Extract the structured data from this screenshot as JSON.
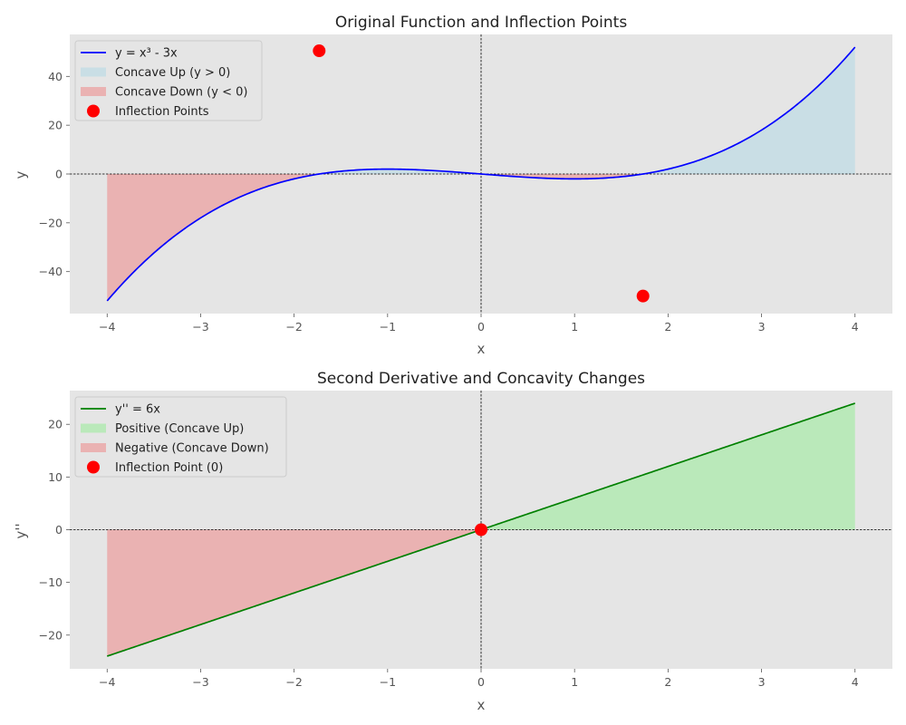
{
  "chart_data": [
    {
      "type": "line",
      "title": "Original Function and Inflection Points",
      "xlabel": "x",
      "ylabel": "y",
      "xlim": [
        -4.4,
        4.4
      ],
      "ylim": [
        -57.2,
        57.2
      ],
      "xticks": [
        -4,
        -3,
        -2,
        -1,
        0,
        1,
        2,
        3,
        4
      ],
      "yticks": [
        -40,
        -20,
        0,
        20,
        40
      ],
      "function": "x^3 - 3x",
      "x_range": [
        -4,
        4
      ],
      "series": [
        {
          "name": "y = x³ - 3x",
          "color": "#0000ff",
          "kind": "line"
        },
        {
          "name": "Concave Up (y > 0)",
          "color": "#add8e6",
          "kind": "fill-positive"
        },
        {
          "name": "Concave Down (y < 0)",
          "color": "#f08080",
          "kind": "fill-negative"
        },
        {
          "name": "Inflection Points",
          "color": "#ff0000",
          "kind": "scatter",
          "points": [
            {
              "x": -1.732,
              "y": 50.5
            },
            {
              "x": 1.732,
              "y": -50
            }
          ]
        }
      ],
      "legend_loc": "upper left",
      "grid": false
    },
    {
      "type": "line",
      "title": "Second Derivative and Concavity Changes",
      "xlabel": "x",
      "ylabel": "y''",
      "xlim": [
        -4.4,
        4.4
      ],
      "ylim": [
        -26.4,
        26.4
      ],
      "xticks": [
        -4,
        -3,
        -2,
        -1,
        0,
        1,
        2,
        3,
        4
      ],
      "yticks": [
        -20,
        -10,
        0,
        10,
        20
      ],
      "function": "6x",
      "x_range": [
        -4,
        4
      ],
      "series": [
        {
          "name": "y'' = 6x",
          "color": "#008000",
          "kind": "line"
        },
        {
          "name": "Positive (Concave Up)",
          "color": "#90ee90",
          "kind": "fill-positive"
        },
        {
          "name": "Negative (Concave Down)",
          "color": "#f08080",
          "kind": "fill-negative"
        },
        {
          "name": "Inflection Point (0)",
          "color": "#ff0000",
          "kind": "scatter",
          "points": [
            {
              "x": 0,
              "y": 0
            }
          ]
        }
      ],
      "legend_loc": "upper left",
      "grid": false
    }
  ],
  "style": {
    "axes_bg": "#e5e5e5",
    "tick_color": "#555555"
  }
}
